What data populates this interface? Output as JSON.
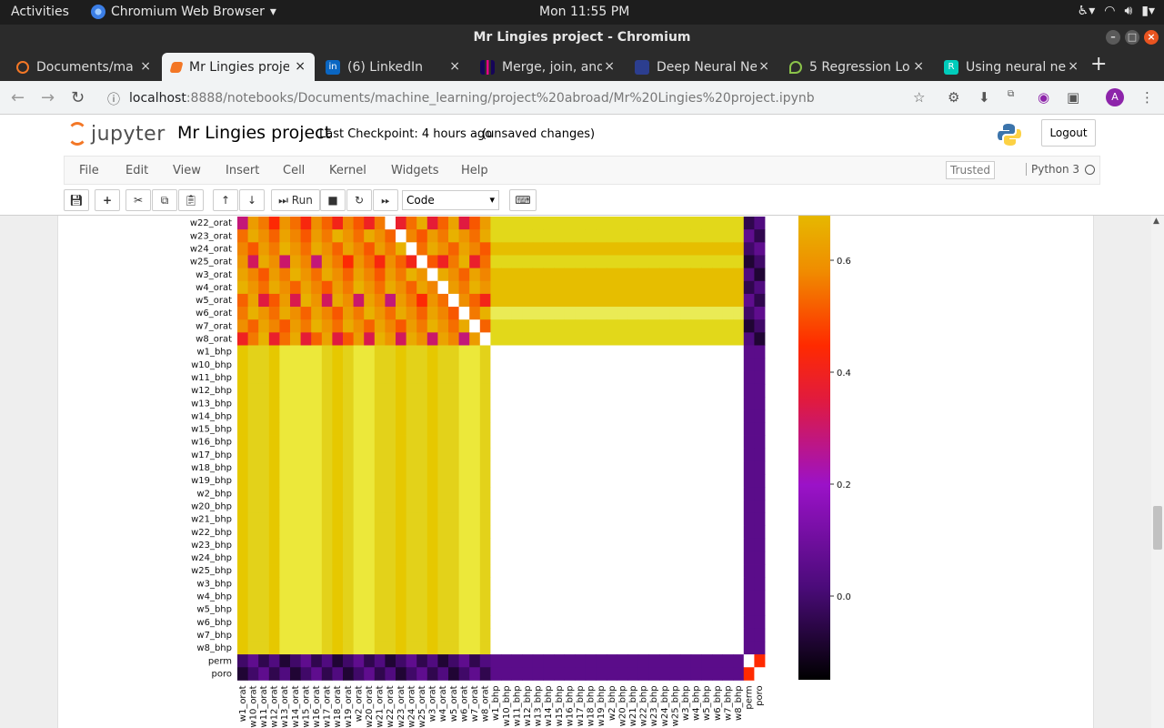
{
  "os": {
    "activities": "Activities",
    "app_name": "Chromium Web Browser",
    "clock": "Mon 11:55 PM"
  },
  "window": {
    "title": "Mr Lingies project - Chromium"
  },
  "tabs": [
    {
      "label": "Documents/ma",
      "color": "#f37726"
    },
    {
      "label": "Mr Lingies proje",
      "color": "#f37726"
    },
    {
      "label": "(6) LinkedIn",
      "color": "#0a66c2"
    },
    {
      "label": "Merge, join, and",
      "color": "#150458"
    },
    {
      "label": "Deep Neural Ne",
      "color": "#2c3e8f"
    },
    {
      "label": "5 Regression Lo",
      "color": "#8bc34a"
    },
    {
      "label": "Using neural ne",
      "color": "#00ccbb"
    }
  ],
  "browser": {
    "url_host": "localhost",
    "url_rest": ":8888/notebooks/Documents/machine_learning/project%20abroad/Mr%20Lingies%20project.ipynb"
  },
  "jupyter": {
    "logo_text": "jupyter",
    "notebook_name": "Mr Lingies project",
    "checkpoint": "Last Checkpoint: 4 hours ago",
    "unsaved": "(unsaved changes)",
    "logout": "Logout",
    "menu": [
      "File",
      "Edit",
      "View",
      "Insert",
      "Cell",
      "Kernel",
      "Widgets",
      "Help"
    ],
    "trusted": "Trusted",
    "kernel": "Python 3",
    "run_label": "Run",
    "cell_type": "Code"
  },
  "chart_data": {
    "type": "heatmap",
    "title": "",
    "visible_row_labels": [
      "w22_orat",
      "w23_orat",
      "w24_orat",
      "w25_orat",
      "w3_orat",
      "w4_orat",
      "w5_orat",
      "w6_orat",
      "w7_orat",
      "w8_orat",
      "w1_bhp",
      "w10_bhp",
      "w11_bhp",
      "w12_bhp",
      "w13_bhp",
      "w14_bhp",
      "w15_bhp",
      "w16_bhp",
      "w17_bhp",
      "w18_bhp",
      "w19_bhp",
      "w2_bhp",
      "w20_bhp",
      "w21_bhp",
      "w22_bhp",
      "w23_bhp",
      "w24_bhp",
      "w25_bhp",
      "w3_bhp",
      "w4_bhp",
      "w5_bhp",
      "w6_bhp",
      "w7_bhp",
      "w8_bhp",
      "perm",
      "poro"
    ],
    "column_labels": [
      "w1_orat",
      "w10_orat",
      "w11_orat",
      "w12_orat",
      "w13_orat",
      "w14_orat",
      "w15_orat",
      "w16_orat",
      "w17_orat",
      "w18_orat",
      "w19_orat",
      "w2_orat",
      "w20_orat",
      "w21_orat",
      "w22_orat",
      "w23_orat",
      "w24_orat",
      "w25_orat",
      "w3_orat",
      "w4_orat",
      "w5_orat",
      "w6_orat",
      "w7_orat",
      "w8_orat",
      "w1_bhp",
      "w10_bhp",
      "w11_bhp",
      "w12_bhp",
      "w13_bhp",
      "w14_bhp",
      "w15_bhp",
      "w16_bhp",
      "w17_bhp",
      "w18_bhp",
      "w19_bhp",
      "w2_bhp",
      "w20_bhp",
      "w21_bhp",
      "w22_bhp",
      "w23_bhp",
      "w24_bhp",
      "w25_bhp",
      "w3_bhp",
      "w4_bhp",
      "w5_bhp",
      "w6_bhp",
      "w7_bhp",
      "w8_bhp",
      "perm",
      "poro"
    ],
    "colormap": "gnuplot",
    "colorbar_ticks": [
      0.6,
      0.4,
      0.2,
      0.0
    ],
    "colorbar_tick_labels": [
      "0.6",
      "0.4",
      "0.2",
      "0.0"
    ],
    "colorbar_range": [
      -0.15,
      0.67
    ]
  }
}
